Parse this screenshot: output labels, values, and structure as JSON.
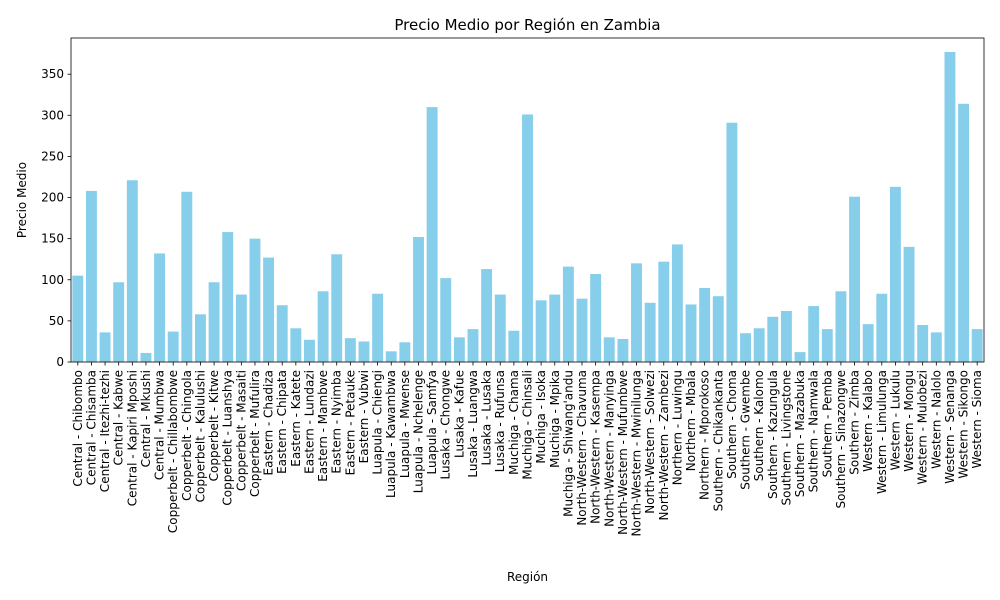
{
  "chart_data": {
    "type": "bar",
    "title": "Precio Medio por Región en Zambia",
    "xlabel": "Región",
    "ylabel": "Precio Medio",
    "ylim": [
      0,
      394
    ],
    "yticks": [
      0,
      50,
      100,
      150,
      200,
      250,
      300,
      350
    ],
    "grid": false,
    "bar_color": "#87ceeb",
    "categories": [
      "Central - Chibombo",
      "Central - Chisamba",
      "Central - Itezhi-tezhi",
      "Central - Kabwe",
      "Central - Kapiri Mposhi",
      "Central - Mkushi",
      "Central - Mumbwa",
      "Copperbelt - Chillabombwe",
      "Copperbelt - Chingola",
      "Copperbelt - Kalulushi",
      "Copperbelt - Kitwe",
      "Copperbelt - Luanshya",
      "Copperbelt - Masaiti",
      "Copperbelt - Mufulira",
      "Eastern - Chadiza",
      "Eastern - Chipata",
      "Eastern - Katete",
      "Eastern - Lundazi",
      "Eastern - Mambwe",
      "Eastern - Nyimba",
      "Eastern - Petauke",
      "Eastern - Vubwi",
      "Luapula - Chiengi",
      "Luapula - Kawambwa",
      "Luapula - Mwense",
      "Luapula - Nchelenge",
      "Luapula - Samfya",
      "Lusaka - Chongwe",
      "Lusaka - Kafue",
      "Lusaka - Luangwa",
      "Lusaka - Lusaka",
      "Lusaka - Rufunsa",
      "Muchiga - Chama",
      "Muchiga - Chinsali",
      "Muchiga - Isoka",
      "Muchiga - Mpika",
      "Muchiga - Shiwang'andu",
      "North-Western - Chavuma",
      "North-Western - Kasempa",
      "North-Western - Manyinga",
      "North-Western - Mufumbwe",
      "North-Western - Mwinilunga",
      "North-Western - Solwezi",
      "North-Western - Zambezi",
      "Northern - Luwingu",
      "Northern - Mbala",
      "Northern - Mporokoso",
      "Southern - Chikankanta",
      "Southern - Choma",
      "Southern - Gwembe",
      "Southern - Kalomo",
      "Southern - Kazungula",
      "Southern - Livingstone",
      "Southern - Mazabuka",
      "Southern - Namwala",
      "Southern - Pemba",
      "Southern - Sinazongwe",
      "Southern - Zimba",
      "Western - Kalabo",
      "Western - Limulunga",
      "Western - Lukulu",
      "Western - Mongu",
      "Western - Mulobezi",
      "Western - Nalolo",
      "Western - Senanga",
      "Western - Sikongo",
      "Western - Sioma"
    ],
    "values": [
      105,
      208,
      36,
      97,
      221,
      11,
      132,
      37,
      207,
      58,
      97,
      158,
      82,
      150,
      127,
      69,
      41,
      27,
      86,
      131,
      29,
      25,
      83,
      13,
      24,
      152,
      310,
      102,
      30,
      40,
      113,
      82,
      38,
      301,
      75,
      82,
      116,
      77,
      107,
      30,
      28,
      120,
      72,
      122,
      143,
      70,
      90,
      80,
      291,
      35,
      41,
      55,
      62,
      12,
      68,
      40,
      86,
      201,
      46,
      83,
      213,
      140,
      45,
      36,
      377,
      314,
      40
    ]
  }
}
